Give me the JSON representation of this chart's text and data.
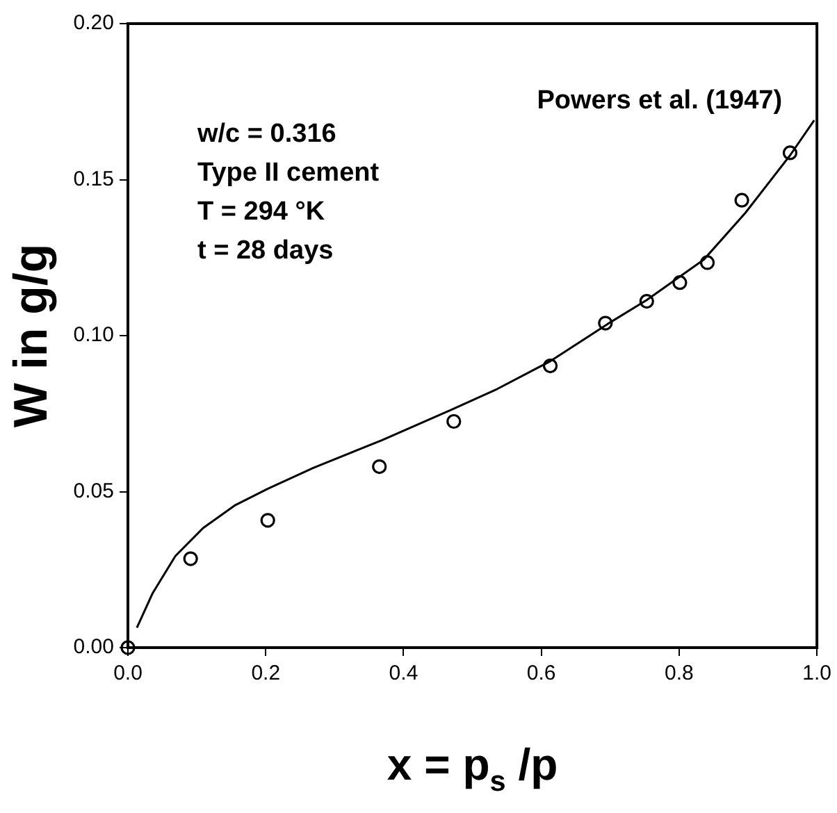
{
  "chart_data": {
    "type": "scatter",
    "xlabel": "x = p$_{s}$ /p",
    "ylabel": "W in g/g",
    "annotations": [
      "w/c = 0.316\nType II cement\nT = 294 °K\nt = 28 days",
      "Powers et al. (1947)"
    ],
    "xlim": [
      0,
      1
    ],
    "ylim": [
      0,
      0.2
    ],
    "xticks": [
      {
        "value": 0,
        "label": "0.0"
      },
      {
        "value": 0.2,
        "label": "0.2"
      },
      {
        "value": 0.4,
        "label": "0.4"
      },
      {
        "value": 0.6,
        "label": "0.6"
      },
      {
        "value": 0.8,
        "label": "0.8"
      },
      {
        "value": 1,
        "label": "1.0"
      }
    ],
    "yticks": [
      {
        "value": 0,
        "label": "0.00"
      },
      {
        "value": 0.05,
        "label": "0.05"
      },
      {
        "value": 0.1,
        "label": "0.10"
      },
      {
        "value": 0.15,
        "label": "0.15"
      },
      {
        "value": 0.2,
        "label": "0.20"
      }
    ],
    "grid": false,
    "legend": false,
    "series": [
      {
        "type": "scatter",
        "marker": "circle",
        "color": "#000000",
        "x": [
          0,
          0.091,
          0.203,
          0.365,
          0.473,
          0.613,
          0.693,
          0.753,
          0.801,
          0.841,
          0.891,
          0.961
        ],
        "values": [
          0,
          0.0285,
          0.0408,
          0.058,
          0.0725,
          0.0903,
          0.104,
          0.111,
          0.117,
          0.1234,
          0.1434,
          0.1586
        ]
      },
      {
        "type": "line",
        "marker": "none",
        "line_style": "solid",
        "color": "#000000",
        "x": [
          0.013,
          0.036,
          0.069,
          0.109,
          0.156,
          0.203,
          0.269,
          0.369,
          0.469,
          0.536,
          0.613,
          0.696,
          0.753,
          0.836,
          0.896,
          0.961,
          0.996
        ],
        "values": [
          0.0064,
          0.0175,
          0.0294,
          0.0383,
          0.0457,
          0.0509,
          0.0576,
          0.0665,
          0.0762,
          0.0829,
          0.0918,
          0.1037,
          0.1114,
          0.1244,
          0.1393,
          0.1578,
          0.169
        ]
      }
    ]
  }
}
